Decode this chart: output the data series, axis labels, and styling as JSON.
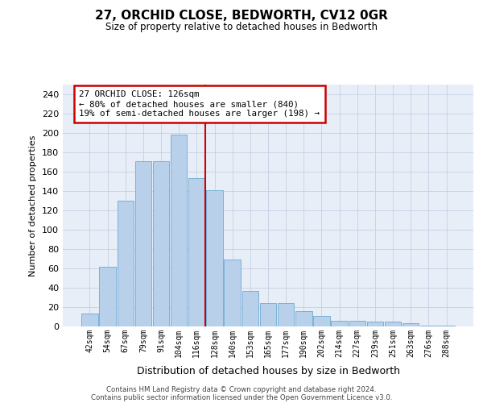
{
  "title": "27, ORCHID CLOSE, BEDWORTH, CV12 0GR",
  "subtitle": "Size of property relative to detached houses in Bedworth",
  "xlabel": "Distribution of detached houses by size in Bedworth",
  "ylabel": "Number of detached properties",
  "bar_labels": [
    "42sqm",
    "54sqm",
    "67sqm",
    "79sqm",
    "91sqm",
    "104sqm",
    "116sqm",
    "128sqm",
    "140sqm",
    "153sqm",
    "165sqm",
    "177sqm",
    "190sqm",
    "202sqm",
    "214sqm",
    "227sqm",
    "239sqm",
    "251sqm",
    "263sqm",
    "276sqm",
    "288sqm"
  ],
  "bar_values": [
    13,
    62,
    130,
    171,
    171,
    198,
    153,
    141,
    69,
    37,
    24,
    24,
    16,
    11,
    6,
    6,
    5,
    5,
    3,
    1,
    1
  ],
  "bar_color": "#b8d0ea",
  "bar_edge_color": "#6aaad4",
  "marker_line_color": "#cc0000",
  "annotation_text": "27 ORCHID CLOSE: 126sqm\n← 80% of detached houses are smaller (840)\n19% of semi-detached houses are larger (198) →",
  "annotation_box_color": "#ffffff",
  "annotation_box_edge_color": "#cc0000",
  "ylim": [
    0,
    250
  ],
  "yticks": [
    0,
    20,
    40,
    60,
    80,
    100,
    120,
    140,
    160,
    180,
    200,
    220,
    240
  ],
  "background_color": "#e8eef8",
  "grid_color": "#c5cfe0",
  "footer_line1": "Contains HM Land Registry data © Crown copyright and database right 2024.",
  "footer_line2": "Contains public sector information licensed under the Open Government Licence v3.0."
}
